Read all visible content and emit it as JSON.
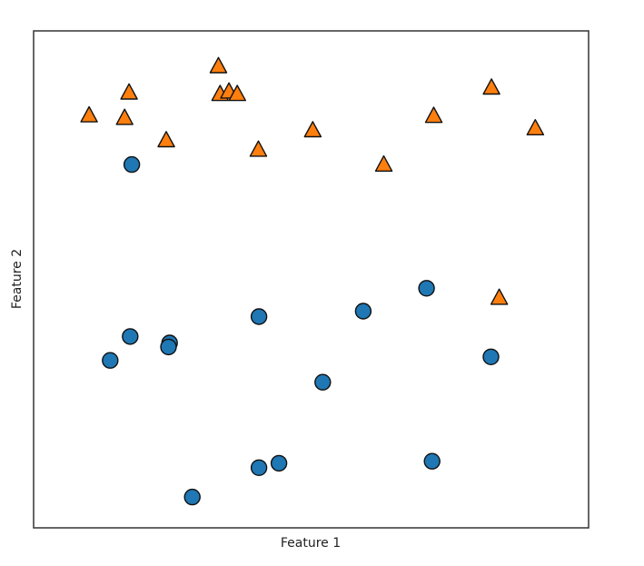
{
  "chart_data": {
    "type": "scatter",
    "title": "",
    "xlabel": "Feature 1",
    "ylabel": "Feature 2",
    "xlim": [
      0,
      100
    ],
    "ylim": [
      0,
      100
    ],
    "grid": false,
    "legend": "none",
    "xticks": [],
    "yticks": [],
    "series": [
      {
        "marker": "circle",
        "color": "#1f77b4",
        "points": [
          {
            "x": 17.7,
            "y": 73.1
          },
          {
            "x": 17.4,
            "y": 38.5
          },
          {
            "x": 13.8,
            "y": 33.7
          },
          {
            "x": 24.5,
            "y": 37.2
          },
          {
            "x": 24.3,
            "y": 36.4
          },
          {
            "x": 40.6,
            "y": 42.5
          },
          {
            "x": 59.4,
            "y": 43.6
          },
          {
            "x": 70.8,
            "y": 48.2
          },
          {
            "x": 52.1,
            "y": 29.3
          },
          {
            "x": 82.4,
            "y": 34.4
          },
          {
            "x": 40.6,
            "y": 12.1
          },
          {
            "x": 44.2,
            "y": 13.0
          },
          {
            "x": 71.8,
            "y": 13.4
          },
          {
            "x": 28.6,
            "y": 6.2
          }
        ]
      },
      {
        "marker": "triangle",
        "color": "#ff7f0e",
        "points": [
          {
            "x": 10.0,
            "y": 83.0
          },
          {
            "x": 17.2,
            "y": 87.6
          },
          {
            "x": 16.4,
            "y": 82.5
          },
          {
            "x": 23.9,
            "y": 78.0
          },
          {
            "x": 33.3,
            "y": 92.9
          },
          {
            "x": 33.6,
            "y": 87.3
          },
          {
            "x": 35.2,
            "y": 87.8
          },
          {
            "x": 36.7,
            "y": 87.3
          },
          {
            "x": 40.5,
            "y": 76.1
          },
          {
            "x": 50.3,
            "y": 80.0
          },
          {
            "x": 63.1,
            "y": 73.1
          },
          {
            "x": 72.1,
            "y": 82.9
          },
          {
            "x": 82.5,
            "y": 88.6
          },
          {
            "x": 90.4,
            "y": 80.4
          },
          {
            "x": 83.9,
            "y": 46.3
          }
        ]
      }
    ]
  }
}
